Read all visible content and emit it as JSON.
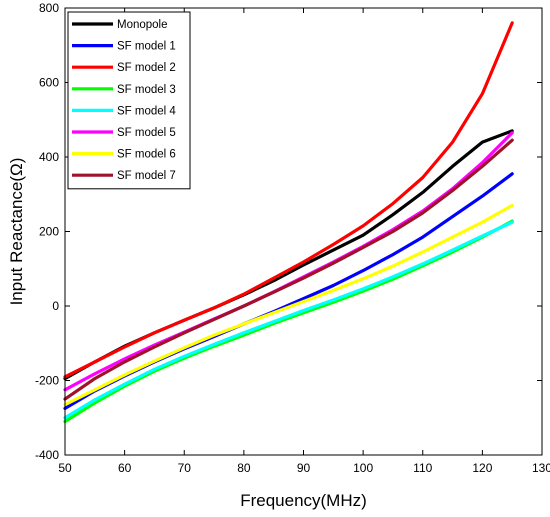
{
  "chart_data": {
    "type": "line",
    "title": "",
    "xlabel": "Frequency(MHz)",
    "ylabel": "Input Reactance(Ω)",
    "xlim": [
      50,
      130
    ],
    "ylim": [
      -400,
      800
    ],
    "xticks": [
      50,
      60,
      70,
      80,
      90,
      100,
      110,
      120,
      130
    ],
    "yticks": [
      -400,
      -200,
      0,
      200,
      400,
      600,
      800
    ],
    "grid": false,
    "legend_position": "top-left",
    "x": [
      50,
      55,
      60,
      65,
      70,
      75,
      80,
      85,
      90,
      95,
      100,
      105,
      110,
      115,
      120,
      125
    ],
    "series": [
      {
        "name": "Monopole",
        "color": "#000000",
        "values": [
          -195,
          -150,
          -108,
          -72,
          -38,
          -5,
          30,
          68,
          110,
          150,
          190,
          245,
          305,
          375,
          440,
          470
        ]
      },
      {
        "name": "SF model 1",
        "color": "#0000ff",
        "values": [
          -275,
          -228,
          -188,
          -150,
          -115,
          -82,
          -48,
          -15,
          20,
          55,
          95,
          138,
          185,
          240,
          295,
          355
        ]
      },
      {
        "name": "SF model 2",
        "color": "#ff0000",
        "values": [
          -190,
          -150,
          -110,
          -72,
          -38,
          -5,
          32,
          75,
          118,
          165,
          215,
          275,
          345,
          440,
          570,
          760
        ]
      },
      {
        "name": "SF model 3",
        "color": "#00ff00",
        "values": [
          -310,
          -260,
          -215,
          -175,
          -140,
          -108,
          -78,
          -47,
          -18,
          10,
          40,
          72,
          108,
          145,
          185,
          228
        ]
      },
      {
        "name": "SF model 4",
        "color": "#00ffff",
        "values": [
          -300,
          -252,
          -210,
          -170,
          -135,
          -103,
          -72,
          -42,
          -12,
          16,
          46,
          78,
          113,
          150,
          188,
          225
        ]
      },
      {
        "name": "SF model 5",
        "color": "#ff00ff",
        "values": [
          -225,
          -182,
          -142,
          -105,
          -70,
          -35,
          0,
          38,
          78,
          118,
          160,
          205,
          255,
          315,
          385,
          465
        ]
      },
      {
        "name": "SF model 6",
        "color": "#ffff00",
        "values": [
          -265,
          -225,
          -185,
          -148,
          -112,
          -78,
          -48,
          -18,
          12,
          42,
          73,
          107,
          145,
          185,
          225,
          270
        ]
      },
      {
        "name": "SF model 7",
        "color": "#a0112a",
        "values": [
          -250,
          -195,
          -150,
          -110,
          -72,
          -36,
          0,
          37,
          75,
          115,
          157,
          200,
          250,
          310,
          375,
          445
        ]
      }
    ]
  }
}
